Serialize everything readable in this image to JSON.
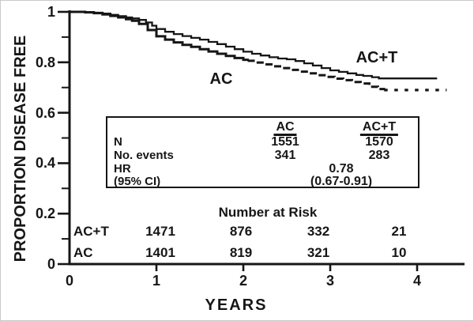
{
  "chart_data": {
    "type": "line",
    "subtype": "kaplan-meier-step",
    "title": "",
    "xlabel": "YEARS",
    "ylabel": "PROPORTION DISEASE FREE",
    "xlim": [
      0,
      4.55
    ],
    "ylim": [
      0,
      1
    ],
    "grid": false,
    "x_tick_labels": [
      "0",
      "1",
      "2",
      "3",
      "4"
    ],
    "y_tick_labels": [
      "1",
      "0.8",
      "0.6",
      "0.4",
      "0.2",
      "0"
    ],
    "y_minor_ticks": [
      0.1,
      0.3,
      0.5,
      0.7,
      0.9
    ],
    "legend_position": "labels-on-curves",
    "series": [
      {
        "name": "AC+T",
        "line_style": "solid",
        "final_value": 0.736,
        "ends_at_year": 4.23,
        "points": [
          [
            0,
            1.0
          ],
          [
            0.18,
            0.999
          ],
          [
            0.28,
            0.997
          ],
          [
            0.38,
            0.993
          ],
          [
            0.47,
            0.988
          ],
          [
            0.56,
            0.983
          ],
          [
            0.65,
            0.978
          ],
          [
            0.72,
            0.974
          ],
          [
            0.8,
            0.968
          ],
          [
            0.88,
            0.958
          ],
          [
            0.95,
            0.945
          ],
          [
            1.0,
            0.932
          ],
          [
            1.1,
            0.921
          ],
          [
            1.2,
            0.912
          ],
          [
            1.3,
            0.904
          ],
          [
            1.4,
            0.897
          ],
          [
            1.5,
            0.89
          ],
          [
            1.6,
            0.881
          ],
          [
            1.7,
            0.872
          ],
          [
            1.8,
            0.862
          ],
          [
            1.9,
            0.852
          ],
          [
            2.0,
            0.842
          ],
          [
            2.1,
            0.834
          ],
          [
            2.2,
            0.827
          ],
          [
            2.3,
            0.82
          ],
          [
            2.4,
            0.815
          ],
          [
            2.5,
            0.812
          ],
          [
            2.6,
            0.805
          ],
          [
            2.7,
            0.796
          ],
          [
            2.8,
            0.787
          ],
          [
            2.9,
            0.777
          ],
          [
            3.0,
            0.768
          ],
          [
            3.1,
            0.762
          ],
          [
            3.2,
            0.756
          ],
          [
            3.3,
            0.75
          ],
          [
            3.38,
            0.746
          ],
          [
            3.48,
            0.741
          ],
          [
            3.56,
            0.736
          ],
          [
            4.23,
            0.736
          ]
        ]
      },
      {
        "name": "AC",
        "line_style": "solid then dashed",
        "dash_from_year": 2.05,
        "sparse_dash_from_year": 3.62,
        "final_value": 0.69,
        "ends_at_year": 4.34,
        "points": [
          [
            0,
            1.0
          ],
          [
            0.18,
            0.998
          ],
          [
            0.28,
            0.995
          ],
          [
            0.38,
            0.99
          ],
          [
            0.47,
            0.984
          ],
          [
            0.56,
            0.978
          ],
          [
            0.65,
            0.971
          ],
          [
            0.72,
            0.965
          ],
          [
            0.8,
            0.952
          ],
          [
            0.9,
            0.928
          ],
          [
            1.0,
            0.903
          ],
          [
            1.1,
            0.89
          ],
          [
            1.2,
            0.879
          ],
          [
            1.3,
            0.869
          ],
          [
            1.4,
            0.861
          ],
          [
            1.5,
            0.852
          ],
          [
            1.6,
            0.843
          ],
          [
            1.7,
            0.834
          ],
          [
            1.8,
            0.825
          ],
          [
            1.9,
            0.817
          ],
          [
            2.0,
            0.81
          ],
          [
            2.05,
            0.806
          ],
          [
            2.15,
            0.799
          ],
          [
            2.25,
            0.792
          ],
          [
            2.35,
            0.784
          ],
          [
            2.45,
            0.777
          ],
          [
            2.55,
            0.77
          ],
          [
            2.65,
            0.763
          ],
          [
            2.75,
            0.756
          ],
          [
            2.85,
            0.749
          ],
          [
            2.95,
            0.742
          ],
          [
            3.05,
            0.735
          ],
          [
            3.15,
            0.729
          ],
          [
            3.25,
            0.722
          ],
          [
            3.35,
            0.716
          ],
          [
            3.45,
            0.703
          ],
          [
            3.55,
            0.694
          ],
          [
            3.62,
            0.69
          ],
          [
            4.34,
            0.69
          ]
        ]
      }
    ]
  },
  "inset_table": {
    "col_headers": [
      "AC",
      "AC+T"
    ],
    "rows": {
      "n": {
        "label": "N",
        "ac": "1551",
        "act": "1570"
      },
      "events": {
        "label": "No. events",
        "ac": "341",
        "act": "283"
      },
      "hr": {
        "label": "HR",
        "value": "0.78"
      },
      "ci": {
        "label": "(95% CI)",
        "value": "(0.67-0.91)"
      }
    }
  },
  "number_at_risk": {
    "title": "Number at Risk",
    "rows": [
      {
        "label": "AC+T",
        "values": [
          "1471",
          "876",
          "332",
          "21"
        ]
      },
      {
        "label": "AC",
        "values": [
          "1401",
          "819",
          "321",
          "10"
        ]
      }
    ]
  },
  "colors": {
    "line": "#161616",
    "text": "#161616",
    "background": "#ffffff",
    "frame_border": "#c9c9c9"
  }
}
